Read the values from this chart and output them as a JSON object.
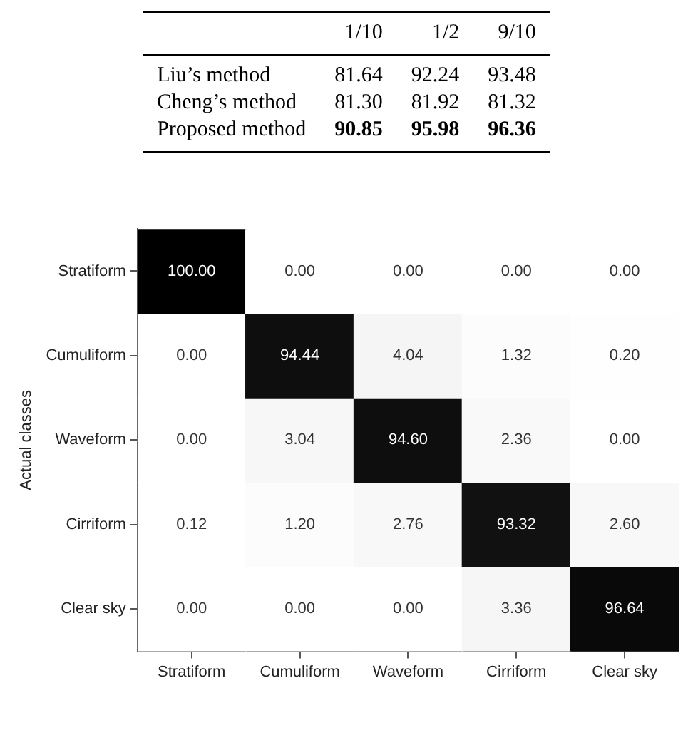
{
  "chart_data": [
    {
      "type": "other",
      "categories": [
        "1/10",
        "1/2",
        "9/10"
      ],
      "series": [
        {
          "name": "Liu’s method",
          "values": [
            81.64,
            92.24,
            93.48
          ],
          "value_labels": [
            "81.64",
            "92.24",
            "93.48"
          ]
        },
        {
          "name": "Cheng’s method",
          "values": [
            81.3,
            81.92,
            81.32
          ],
          "value_labels": [
            "81.30",
            "81.92",
            "81.32"
          ]
        },
        {
          "name": "Proposed method",
          "values": [
            90.85,
            95.98,
            96.36
          ],
          "value_labels": [
            "90.85",
            "95.98",
            "96.36"
          ]
        }
      ]
    },
    {
      "type": "heatmap",
      "ylabel": "Actual classes",
      "categories": [
        "Stratiform",
        "Cumuliform",
        "Waveform",
        "Cirriform",
        "Clear sky"
      ],
      "y_categories": [
        "Stratiform",
        "Cumuliform",
        "Waveform",
        "Cirriform",
        "Clear sky"
      ],
      "cells": [
        [
          100.0,
          0.0,
          0.0,
          0.0,
          0.0
        ],
        [
          0.0,
          94.44,
          4.04,
          1.32,
          0.2
        ],
        [
          0.0,
          3.04,
          94.6,
          2.36,
          0.0
        ],
        [
          0.12,
          1.2,
          2.76,
          93.32,
          2.6
        ],
        [
          0.0,
          0.0,
          0.0,
          3.36,
          96.64
        ]
      ],
      "cell_labels": [
        [
          "100.00",
          "0.00",
          "0.00",
          "0.00",
          "0.00"
        ],
        [
          "0.00",
          "94.44",
          "4.04",
          "1.32",
          "0.20"
        ],
        [
          "0.00",
          "3.04",
          "94.60",
          "2.36",
          "0.00"
        ],
        [
          "0.12",
          "1.20",
          "2.76",
          "93.32",
          "2.60"
        ],
        [
          "0.00",
          "0.00",
          "0.00",
          "3.36",
          "96.64"
        ]
      ],
      "data_labels": true
    }
  ]
}
